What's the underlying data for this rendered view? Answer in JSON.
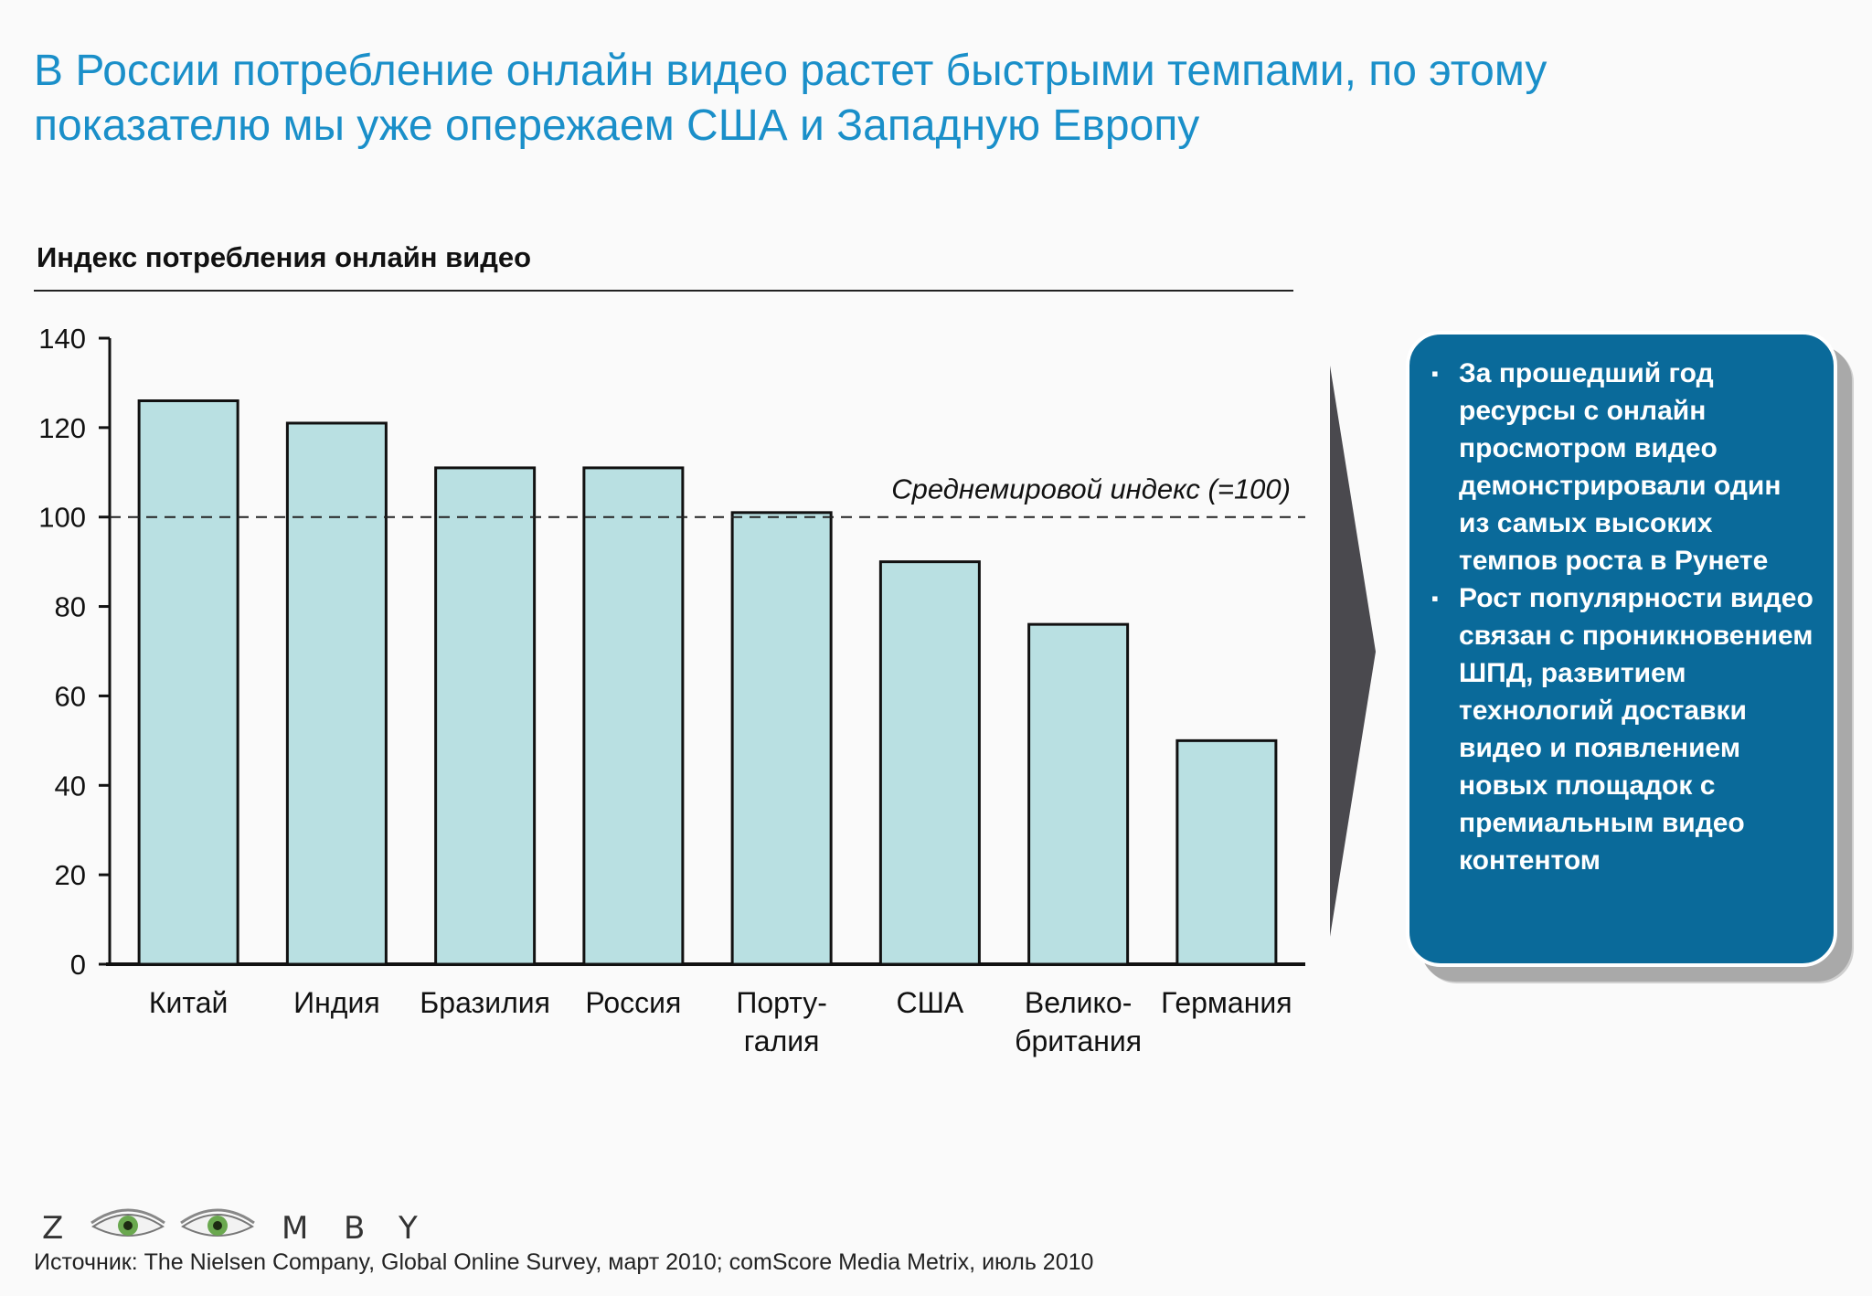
{
  "slide": {
    "title_line1": "В России потребление онлайн видео растет быстрыми темпами, по этому",
    "title_line2": "показателю мы уже опережаем США и Западную Европу"
  },
  "chart_data": {
    "type": "bar",
    "title": "Индекс потребления онлайн видео",
    "categories": [
      [
        "Китай"
      ],
      [
        "Индия"
      ],
      [
        "Бразилия"
      ],
      [
        "Россия"
      ],
      [
        "Порту-",
        "галия"
      ],
      [
        "США"
      ],
      [
        "Велико-",
        "британия"
      ],
      [
        "Германия"
      ]
    ],
    "values": [
      126,
      121,
      111,
      111,
      101,
      90,
      76,
      50
    ],
    "ylim": [
      0,
      140
    ],
    "yticks": [
      0,
      20,
      40,
      60,
      80,
      100,
      120,
      140
    ],
    "grid": false,
    "reference_line": {
      "value": 100,
      "label": "Среднемировой индекс (=100)"
    },
    "colors": {
      "bar_fill": "#b9e0e2",
      "bar_stroke": "#111111",
      "axis": "#111111"
    }
  },
  "callout": {
    "bullets": [
      "За прошедший год ресурсы с онлайн просмотром видео демонстрировали один из самых высоких темпов роста в Рунете",
      "Рост популярности видео связан с проникновением ШПД, развитием технологий доставки видео и появлением новых площадок с премиальным видео контентом"
    ],
    "bullet_glyph": "▪",
    "colors": {
      "background": "#0a6a9a",
      "arrow": "#4a494e"
    }
  },
  "logo": {
    "letters": [
      "Z",
      "M",
      "B",
      "Y"
    ],
    "icon": "eye-icon"
  },
  "source": "Источник: The Nielsen Company, Global Online Survey, март 2010; comScore Media Metrix, июль 2010"
}
